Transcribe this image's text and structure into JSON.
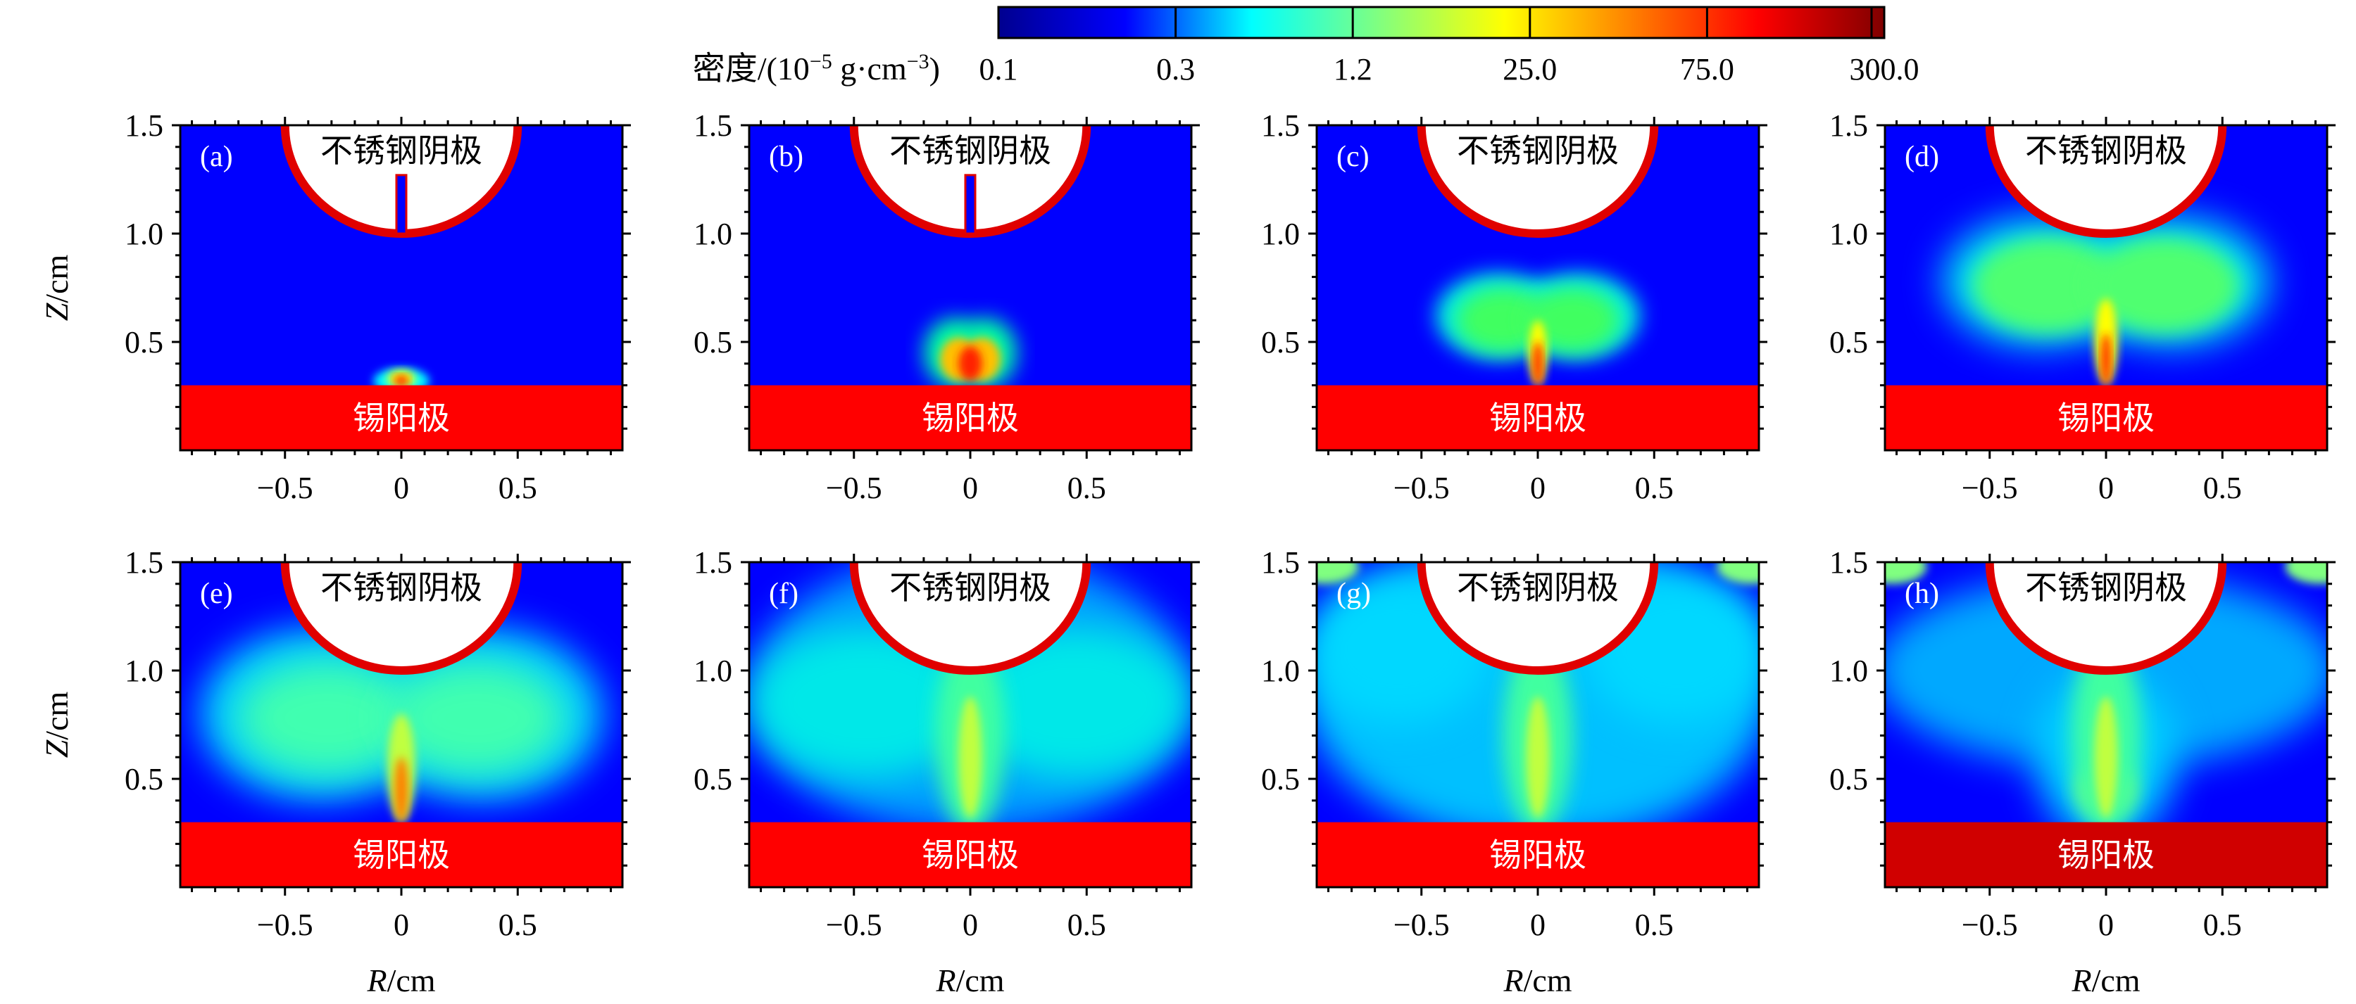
{
  "chart_data": {
    "type": "heatmap",
    "colorbar": {
      "label": "密度/(10⁻⁵ g·cm⁻³)",
      "label_parts": {
        "prefix": "密度/(10",
        "exp1": "−5",
        "mid": " g·cm",
        "exp2": "−3",
        "suffix": ")"
      },
      "ticks": [
        "0.1",
        "0.3",
        "1.2",
        "25.0",
        "75.0",
        "300.0"
      ],
      "tick_values": [
        0.1,
        0.3,
        1.2,
        25.0,
        75.0,
        300.0
      ],
      "colors": [
        "#00008f",
        "#0000ff",
        "#00ffff",
        "#80ff80",
        "#ffff00",
        "#ff8000",
        "#ff0000",
        "#800000"
      ]
    },
    "x_axis": {
      "label": "R/cm",
      "label_var": "R",
      "label_unit": "/cm",
      "range": [
        -0.95,
        0.95
      ],
      "ticks": [
        "−0.5",
        "0",
        "0.5"
      ],
      "tick_values": [
        -0.5,
        0,
        0.5
      ]
    },
    "y_axis": {
      "label": "Z/cm",
      "label_var": "Z",
      "label_unit": "/cm",
      "range": [
        0,
        1.5
      ],
      "ticks": [
        "0.5",
        "1.0",
        "1.5"
      ],
      "tick_values": [
        0.5,
        1.0,
        1.5
      ]
    },
    "electrodes": {
      "cathode": "不锈钢阴极",
      "anode": "锡阳极",
      "cathode_center_z": 1.5,
      "cathode_radius": 0.5,
      "anode_top_z": 0.3
    },
    "panels": [
      {
        "label": "(a)",
        "background": "low",
        "features": [
          "anode-tip-small",
          "cathode-rod"
        ]
      },
      {
        "label": "(b)",
        "background": "low",
        "features": [
          "plume-small",
          "cathode-rod"
        ]
      },
      {
        "label": "(c)",
        "background": "low",
        "features": [
          "plume-medium"
        ]
      },
      {
        "label": "(d)",
        "background": "low",
        "features": [
          "plume-wide"
        ]
      },
      {
        "label": "(e)",
        "background": "low",
        "features": [
          "plume-wider"
        ]
      },
      {
        "label": "(f)",
        "background": "low",
        "features": [
          "plume-spread",
          "column"
        ]
      },
      {
        "label": "(g)",
        "background": "low",
        "features": [
          "plume-filled",
          "column",
          "corner-glow"
        ]
      },
      {
        "label": "(h)",
        "background": "low",
        "features": [
          "plume-late",
          "column",
          "corner-glow"
        ],
        "anode_dark": true
      }
    ]
  }
}
